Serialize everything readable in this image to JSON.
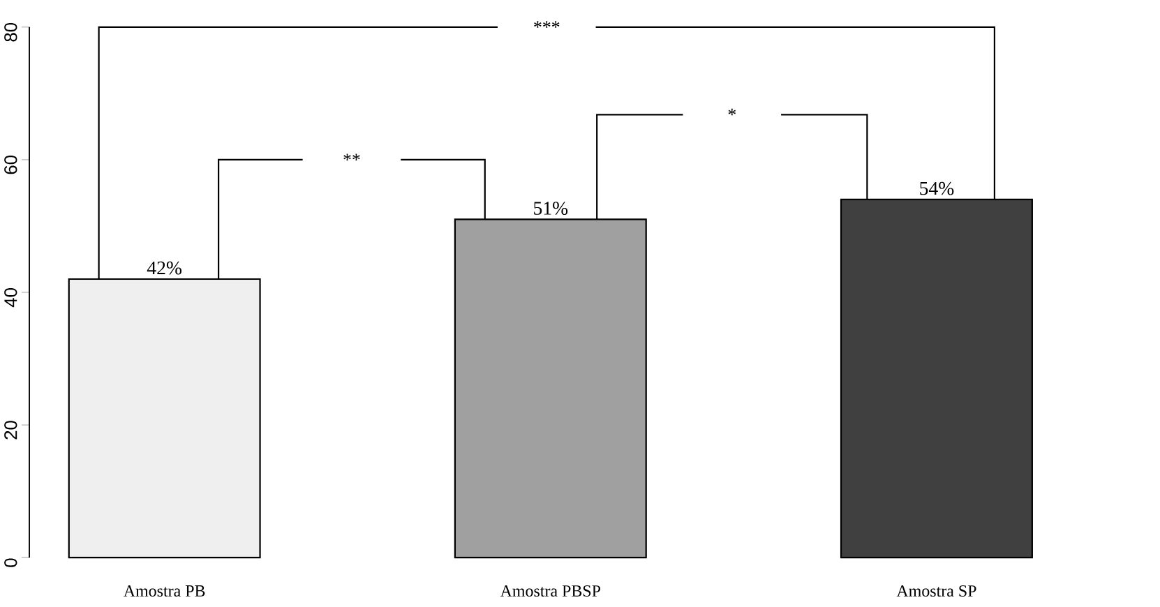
{
  "chart_data": {
    "type": "bar",
    "categories": [
      "Amostra PB",
      "Amostra PBSP",
      "Amostra SP"
    ],
    "values": [
      42,
      51,
      54
    ],
    "colors": [
      "#efefef",
      "#a0a0a0",
      "#404040"
    ],
    "value_labels": [
      "42%",
      "51%",
      "54%"
    ],
    "ylim": [
      0,
      80
    ],
    "yticks": [
      0,
      20,
      40,
      60,
      80
    ],
    "annotations": [
      "**",
      "*",
      "***"
    ],
    "grid": false
  }
}
